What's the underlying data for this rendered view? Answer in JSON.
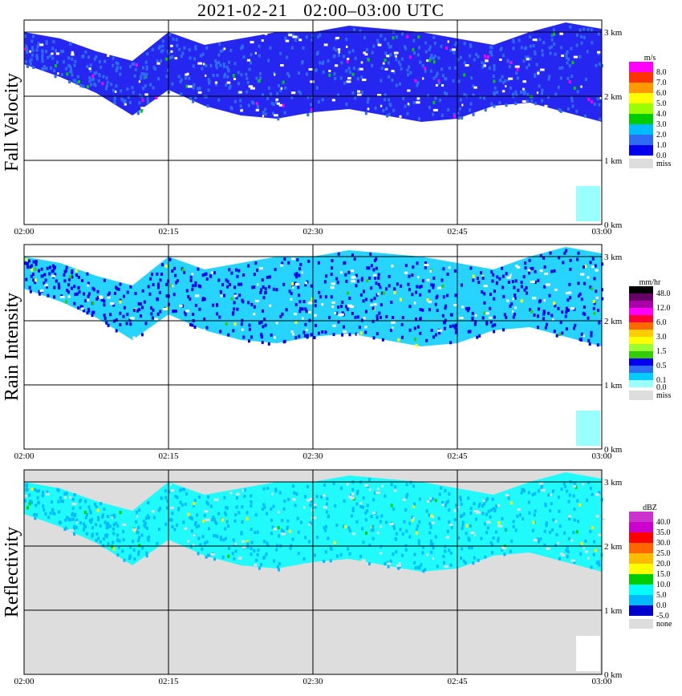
{
  "title": "2021-02-21   02:00–03:00 UTC",
  "chart_data": [
    {
      "type": "heatmap",
      "ylabel": "Fall Velocity",
      "background_color": "#ffffff",
      "x_ticks": [
        "02:00",
        "02:15",
        "02:30",
        "02:45",
        "03:00"
      ],
      "y_ticks": [
        "0 km",
        "1 km",
        "2 km",
        "3 km"
      ],
      "ylim_km": [
        0,
        3.2
      ],
      "legend": {
        "unit": "m/s",
        "labels": [
          "8.0",
          "7.0",
          "6.0",
          "5.0",
          "4.0",
          "3.0",
          "2.0",
          "1.0",
          "0.0"
        ],
        "colors": [
          "#ff00ff",
          "#ff3300",
          "#ff9900",
          "#ffff00",
          "#99ff00",
          "#00cc00",
          "#00bbff",
          "#2f6cf4",
          "#0000ee"
        ],
        "miss_label": "miss",
        "miss_color": "#dddddd"
      },
      "echo": {
        "top_km": [
          3.0,
          2.9,
          2.7,
          2.55,
          3.0,
          2.8,
          2.9,
          3.0,
          3.0,
          3.1,
          3.05,
          3.0,
          2.9,
          2.8,
          3.0,
          3.15,
          3.05
        ],
        "base_km": [
          2.5,
          2.3,
          2.05,
          1.7,
          2.1,
          1.85,
          1.7,
          1.65,
          1.75,
          1.8,
          1.7,
          1.6,
          1.65,
          1.85,
          1.9,
          1.75,
          1.6
        ],
        "fill": "#0000ee",
        "accent": "#2f6cf4",
        "sparse": [
          "#ff00ff",
          "#00cc00"
        ]
      }
    },
    {
      "type": "heatmap",
      "ylabel": "Rain Intensity",
      "background_color": "#ffffff",
      "x_ticks": [
        "02:00",
        "02:15",
        "02:30",
        "02:45",
        "03:00"
      ],
      "y_ticks": [
        "0 km",
        "1 km",
        "2 km",
        "3 km"
      ],
      "ylim_km": [
        0,
        3.2
      ],
      "legend": {
        "unit": "mm/hr",
        "labels": [
          "48.0",
          "",
          "12.0",
          "",
          "6.0",
          "",
          "3.0",
          "",
          "1.5",
          "",
          "0.5",
          "",
          "0.1",
          "0.0"
        ],
        "colors": [
          "#000000",
          "#660066",
          "#aa00aa",
          "#ff00ff",
          "#ff0033",
          "#ff6600",
          "#ffcc00",
          "#ffff00",
          "#99ff33",
          "#33cc00",
          "#0000ee",
          "#2f6cf4",
          "#00ccff",
          "#99ffff"
        ],
        "miss_label": "miss",
        "miss_color": "#dddddd"
      },
      "echo": {
        "top_km": [
          3.0,
          2.9,
          2.7,
          2.55,
          3.0,
          2.8,
          2.9,
          3.0,
          3.0,
          3.1,
          3.05,
          3.0,
          2.9,
          2.8,
          3.0,
          3.15,
          3.05
        ],
        "base_km": [
          2.5,
          2.3,
          2.05,
          1.7,
          2.1,
          1.85,
          1.7,
          1.65,
          1.75,
          1.8,
          1.7,
          1.6,
          1.65,
          1.85,
          1.9,
          1.75,
          1.6
        ],
        "fill": "#00ccff",
        "accent": "#0000ee",
        "sparse": [
          "#ffff00",
          "#33cc00"
        ]
      }
    },
    {
      "type": "heatmap",
      "ylabel": "Reflectivity",
      "background_color": "#dddddd",
      "x_ticks": [
        "02:00",
        "02:15",
        "02:30",
        "02:45",
        "03:00"
      ],
      "y_ticks": [
        "0 km",
        "1 km",
        "2 km",
        "3 km"
      ],
      "ylim_km": [
        0,
        3.2
      ],
      "legend": {
        "unit": "dBZ",
        "labels": [
          "40.0",
          "35.0",
          "30.0",
          "25.0",
          "20.0",
          "15.0",
          "10.0",
          "5.0",
          "0.0",
          "-5.0"
        ],
        "colors": [
          "#cc33cc",
          "#cc00cc",
          "#ff0000",
          "#ff6600",
          "#ffbb00",
          "#ffff00",
          "#00cc00",
          "#00ffff",
          "#00bbff",
          "#0000cc"
        ],
        "miss_label": "none",
        "miss_color": "#dddddd"
      },
      "echo": {
        "top_km": [
          3.0,
          2.9,
          2.7,
          2.55,
          3.0,
          2.8,
          2.9,
          3.0,
          3.0,
          3.1,
          3.05,
          3.0,
          2.9,
          2.8,
          3.0,
          3.15,
          3.05
        ],
        "base_km": [
          2.5,
          2.3,
          2.05,
          1.7,
          2.1,
          1.85,
          1.7,
          1.65,
          1.75,
          1.8,
          1.7,
          1.6,
          1.65,
          1.85,
          1.9,
          1.75,
          1.6
        ],
        "fill": "#00ffff",
        "accent": "#00bbff",
        "sparse": [
          "#00cc00",
          "#ffff00"
        ]
      }
    }
  ]
}
